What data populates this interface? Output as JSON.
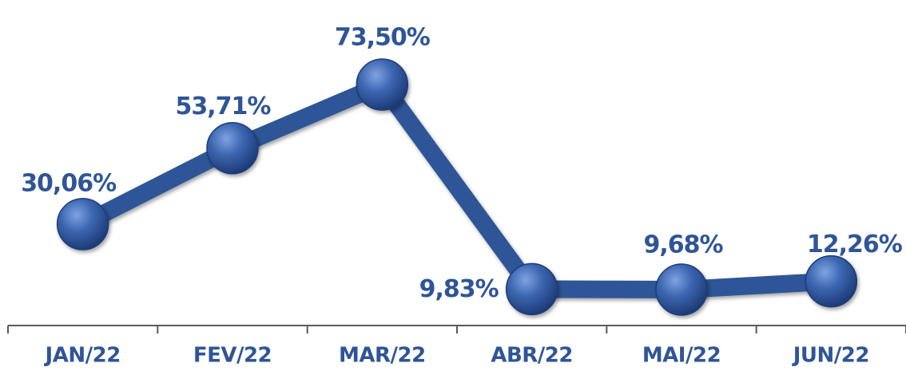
{
  "chart_data": {
    "type": "line",
    "categories": [
      "JAN/22",
      "FEV/22",
      "MAR/22",
      "ABR/22",
      "MAI/22",
      "JUN/22"
    ],
    "values": [
      30.06,
      53.71,
      73.5,
      9.83,
      9.68,
      12.26
    ],
    "data_labels": [
      "30,06%",
      "53,71%",
      "73,50%",
      "9,83%",
      "9,68%",
      "12,26%"
    ],
    "title": "",
    "xlabel": "",
    "ylabel": "",
    "ylim": [
      0,
      80
    ],
    "grid": false,
    "legend": "none",
    "colors": {
      "line": "#2F5597",
      "marker": "#3A64AE",
      "label": "#2F5597",
      "axis": "#595959"
    }
  }
}
